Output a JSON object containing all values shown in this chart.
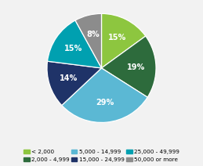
{
  "labels": [
    "< 2,000",
    "2,000 - 4,999",
    "5,000 - 14,999",
    "15,000 - 24,999",
    "25,000 - 49,999",
    "50,000 or more"
  ],
  "values": [
    15,
    19,
    29,
    14,
    15,
    8
  ],
  "colors": [
    "#8dc63f",
    "#2d6b3c",
    "#5bb8d4",
    "#1f3368",
    "#00a0b0",
    "#8c8c8c"
  ],
  "pct_labels": [
    "15%",
    "19%",
    "29%",
    "14%",
    "15%",
    "8%"
  ],
  "start_angle": 90,
  "figsize": [
    2.59,
    2.12
  ],
  "dpi": 100,
  "bg_color": "#f2f2f2"
}
